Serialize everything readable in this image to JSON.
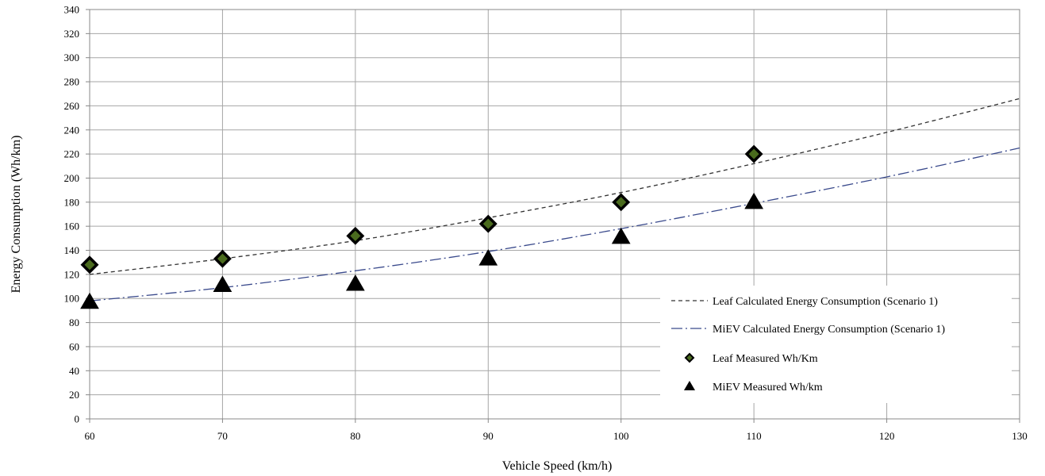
{
  "chart_data": {
    "type": "scatter",
    "xlabel": "Vehicle Speed  (km/h)",
    "ylabel": "Energy Consumption (Wh/km)",
    "xlim": [
      60,
      130
    ],
    "ylim": [
      0,
      340
    ],
    "x_ticks": [
      60,
      70,
      80,
      90,
      100,
      110,
      120,
      130
    ],
    "y_ticks": [
      0,
      20,
      40,
      60,
      80,
      100,
      120,
      140,
      160,
      180,
      200,
      220,
      240,
      260,
      280,
      300,
      320,
      340
    ],
    "grid": true,
    "legend_position": "lower-right",
    "series": [
      {
        "name": "Leaf Calculated Energy Consumption (Scenario 1)",
        "kind": "line",
        "style": "dashed",
        "color": "#333333",
        "x": [
          60,
          70,
          80,
          90,
          100,
          110,
          120,
          130
        ],
        "y": [
          120,
          133,
          148,
          167,
          188,
          212,
          238,
          266
        ]
      },
      {
        "name": "MiEV Calculated Energy Consumption (Scenario 1)",
        "kind": "line",
        "style": "dash-dot",
        "color": "#3a4a8c",
        "x": [
          60,
          70,
          80,
          90,
          100,
          110,
          120,
          130
        ],
        "y": [
          98,
          109,
          123,
          139,
          158,
          179,
          201,
          225
        ]
      },
      {
        "name": "Leaf Measured Wh/Km",
        "kind": "points",
        "marker": "diamond",
        "color": "#000000",
        "fill": "#4a6b1e",
        "x": [
          60,
          70,
          80,
          90,
          100,
          110
        ],
        "y": [
          128,
          133,
          152,
          162,
          180,
          220
        ]
      },
      {
        "name": "MiEV Measured Wh/km",
        "kind": "points",
        "marker": "triangle",
        "color": "#000000",
        "x": [
          60,
          70,
          80,
          90,
          100,
          110
        ],
        "y": [
          97,
          111,
          112,
          133,
          151,
          180
        ]
      }
    ]
  }
}
